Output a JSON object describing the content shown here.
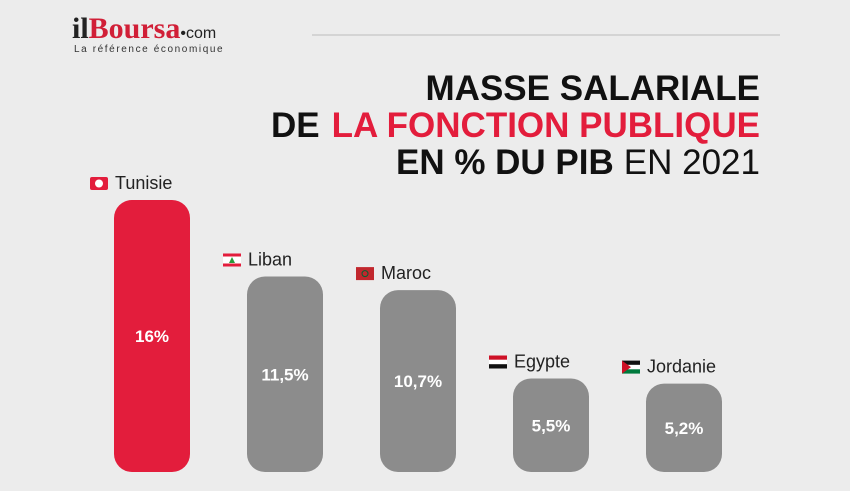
{
  "header": {
    "brand_prefix": "il",
    "brand_name": "Boursa",
    "brand_suffix": "•com",
    "tagline": "La référence économique"
  },
  "chart_data": {
    "type": "bar",
    "title": {
      "line1": "MASSE SALARIALE",
      "line2_a": "DE",
      "line2_b": "LA FONCTION PUBLIQUE",
      "line3_a": "EN % DU PIB",
      "line3_b": "EN 2021"
    },
    "categories": [
      "Tunisie",
      "Liban",
      "Maroc",
      "Egypte",
      "Jordanie"
    ],
    "values": [
      16,
      11.5,
      10.7,
      5.5,
      5.2
    ],
    "value_labels": [
      "16%",
      "11,5%",
      "10,7%",
      "5,5%",
      "5,2%"
    ],
    "colors": [
      "#e31d3c",
      "#8c8c8c",
      "#8c8c8c",
      "#8c8c8c",
      "#8c8c8c"
    ]
  }
}
